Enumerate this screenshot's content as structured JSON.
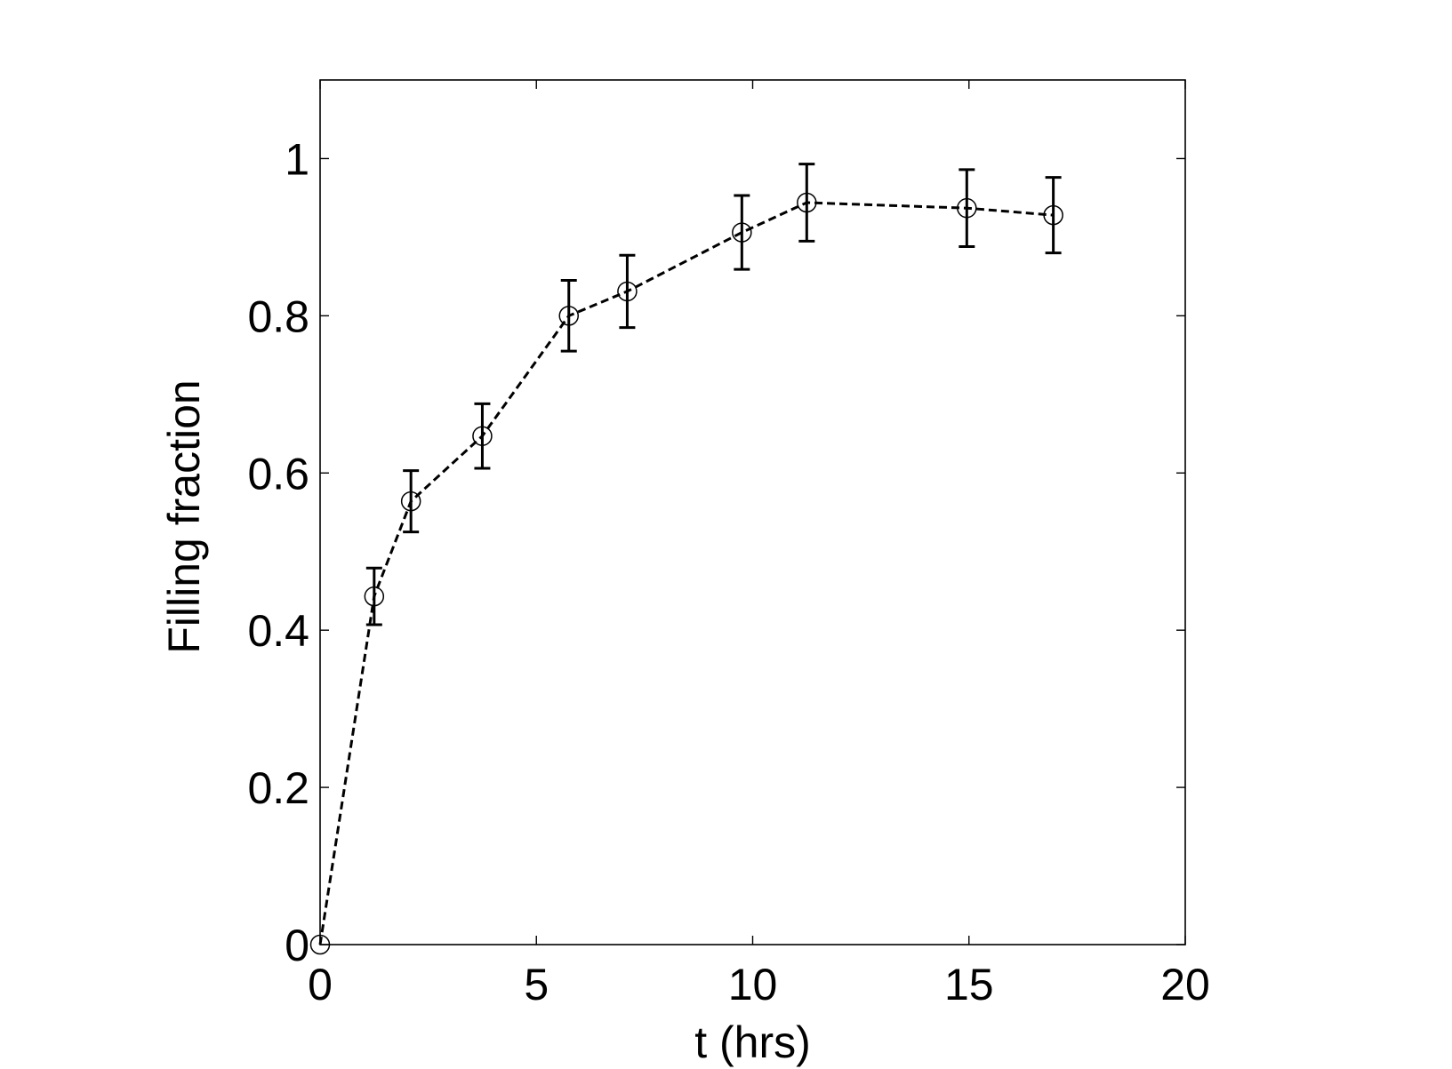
{
  "chart_data": {
    "type": "line",
    "title": "",
    "xlabel": "t (hrs)",
    "ylabel": "Filling fraction",
    "xlim": [
      0,
      20
    ],
    "ylim": [
      0,
      1.1
    ],
    "xticks": [
      0,
      5,
      10,
      15,
      20
    ],
    "yticks": [
      0,
      0.2,
      0.4,
      0.6,
      0.8,
      1
    ],
    "xtick_labels": [
      "0",
      "5",
      "10",
      "15",
      "20"
    ],
    "ytick_labels": [
      "0",
      "0.2",
      "0.4",
      "0.6",
      "0.8",
      "1"
    ],
    "grid": false,
    "legend": "none",
    "series": [
      {
        "marker": "open-circle",
        "line_style": "dashed",
        "color": "#000000",
        "points": [
          {
            "x": 0,
            "y": 0,
            "err": 0
          },
          {
            "x": 1.25,
            "y": 0.443,
            "err": 0.036
          },
          {
            "x": 2.1,
            "y": 0.564,
            "err": 0.039
          },
          {
            "x": 3.75,
            "y": 0.647,
            "err": 0.041
          },
          {
            "x": 5.75,
            "y": 0.8,
            "err": 0.045
          },
          {
            "x": 7.1,
            "y": 0.831,
            "err": 0.046
          },
          {
            "x": 9.75,
            "y": 0.906,
            "err": 0.047
          },
          {
            "x": 11.25,
            "y": 0.944,
            "err": 0.049
          },
          {
            "x": 14.95,
            "y": 0.937,
            "err": 0.049
          },
          {
            "x": 16.95,
            "y": 0.928,
            "err": 0.048
          }
        ]
      }
    ]
  }
}
